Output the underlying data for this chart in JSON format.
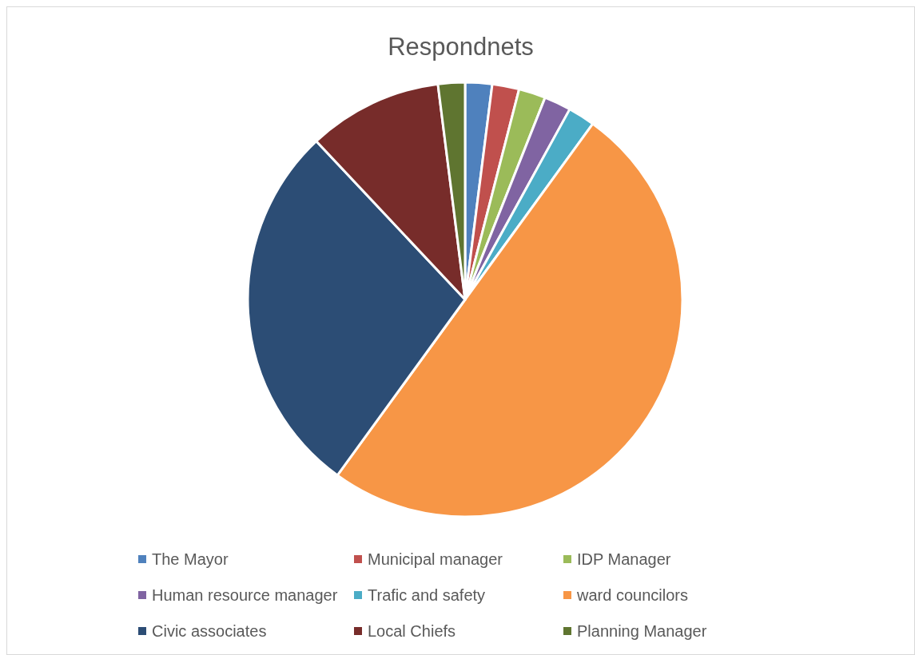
{
  "chart_data": {
    "type": "pie",
    "title": "Respondnets",
    "categories": [
      "The Mayor",
      "Municipal manager",
      "IDP Manager",
      "Human resource manager",
      "Trafic and safety",
      "ward councilors",
      "Civic associates",
      "Local Chiefs",
      "Planning Manager"
    ],
    "values": [
      2,
      2,
      2,
      2,
      2,
      50,
      28,
      10,
      2
    ],
    "colors": [
      "#4f81bd",
      "#c0504d",
      "#9bbb59",
      "#8064a2",
      "#4bacc6",
      "#f79646",
      "#2c4d75",
      "#772c2a",
      "#5f7530"
    ],
    "legend": "bottom"
  }
}
